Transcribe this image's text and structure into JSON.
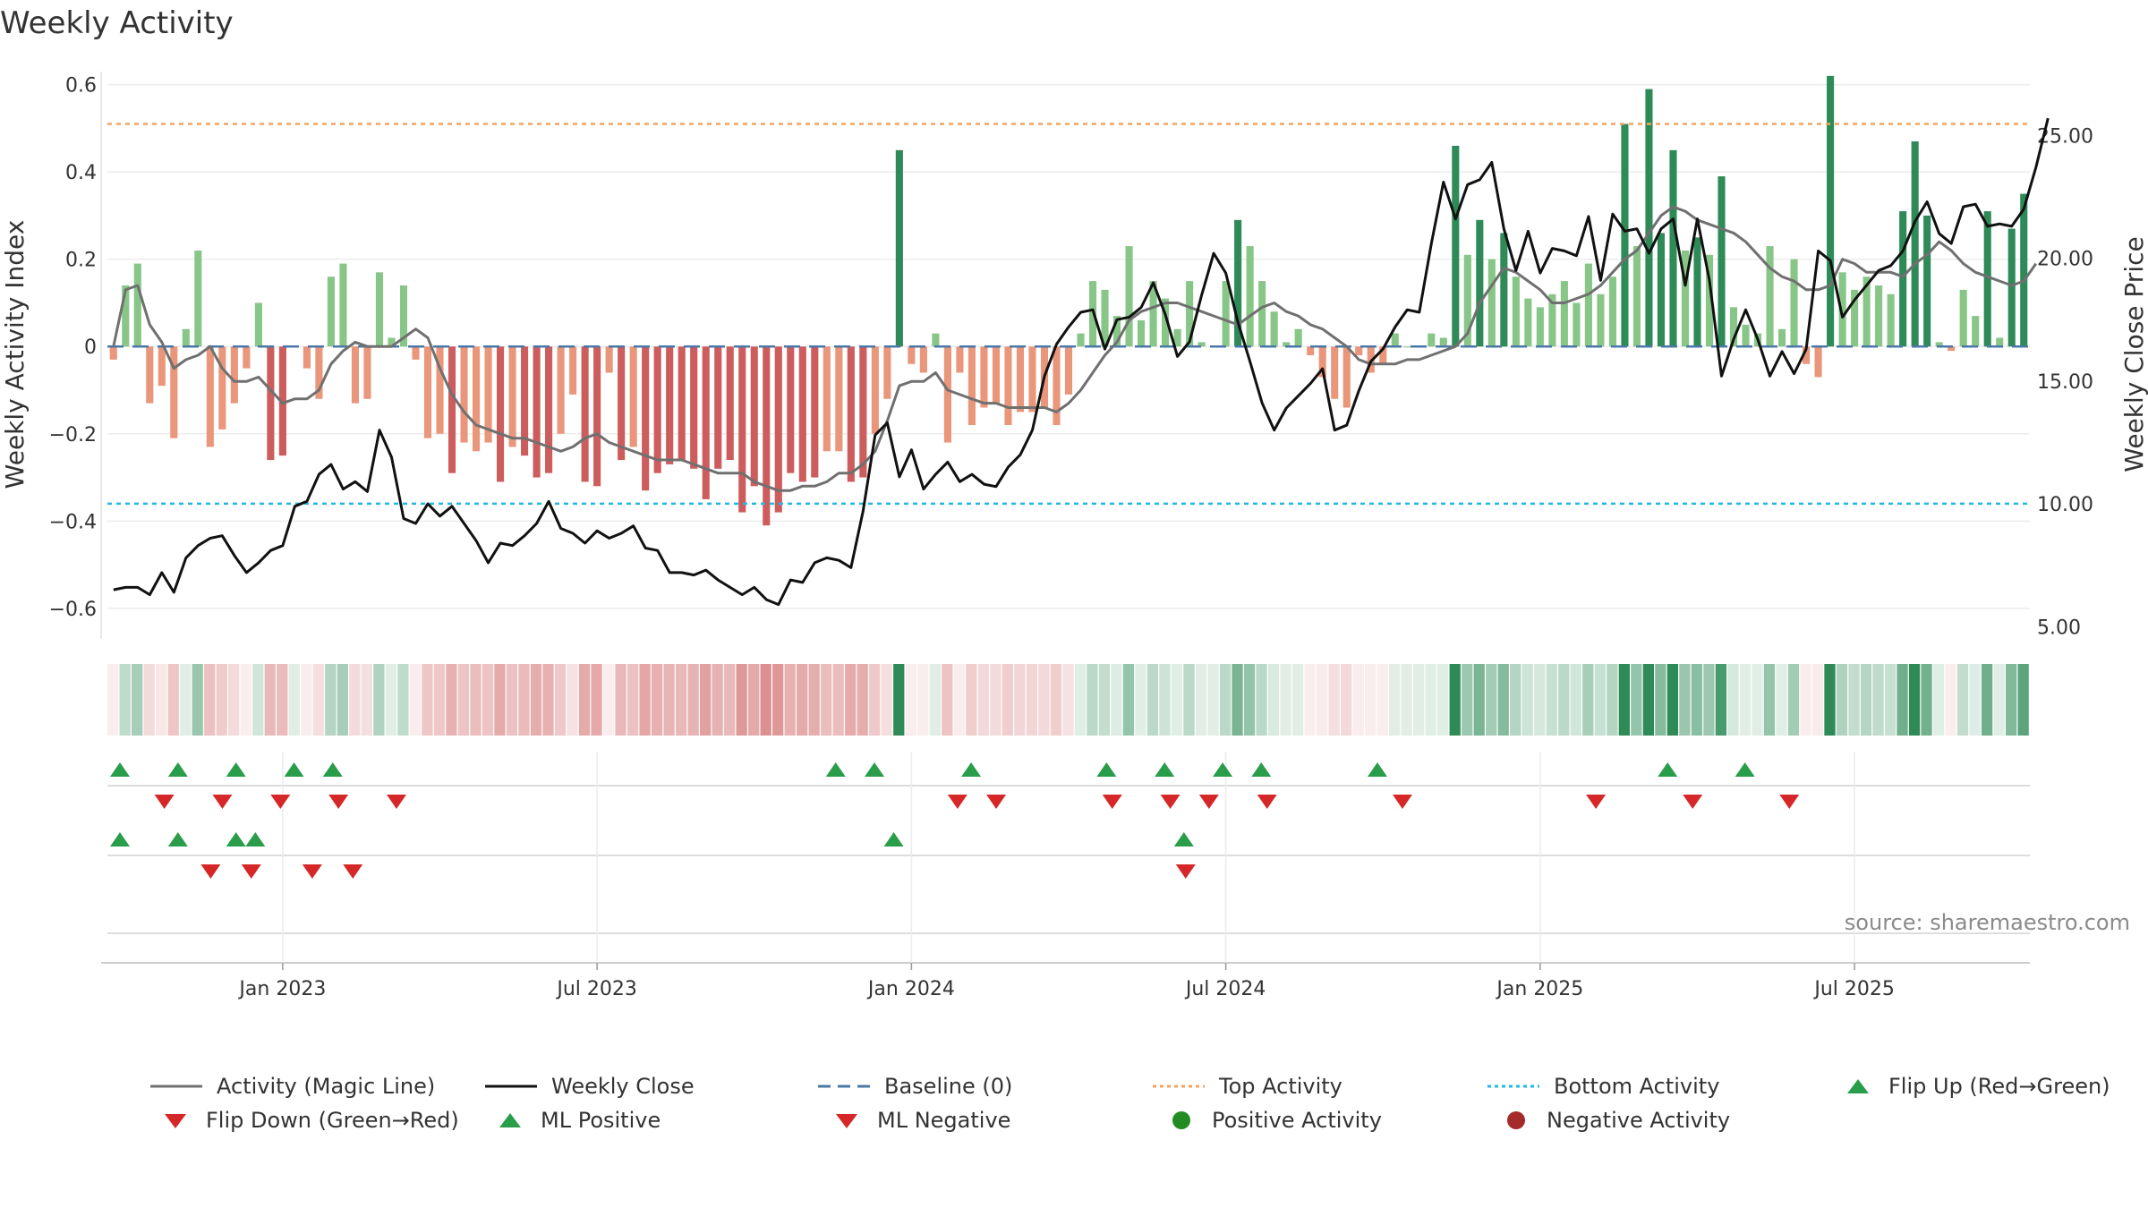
{
  "title": "Weekly Activity",
  "source": "source: sharemaestro.com",
  "chart_data": {
    "type": "bar",
    "title": "Weekly Activity",
    "ylabel": "Weekly Activity Index",
    "y2label": "Weekly Close Price",
    "ylim": [
      -0.67,
      0.63
    ],
    "y2lim": [
      4.5,
      27.6
    ],
    "yticks": [
      0.6,
      0.4,
      0.2,
      0,
      -0.2,
      -0.4,
      -0.6
    ],
    "ytick_labels": [
      "0.6",
      "0.4",
      "0.2",
      "0",
      "−0.2",
      "−0.4",
      "−0.6"
    ],
    "y2ticks": [
      25,
      20,
      15,
      10,
      5
    ],
    "y2tick_labels": [
      "25.00",
      "20.00",
      "15.00",
      "10.00",
      "5.00"
    ],
    "top_activity": 0.51,
    "bottom_activity": -0.36,
    "baseline": 0,
    "x_months": [
      "Jan 2023",
      "Jul 2023",
      "Jan 2024",
      "Jul 2024",
      "Jan 2025",
      "Jul 2025"
    ],
    "x_month_weeks": [
      14.5,
      40.5,
      66.5,
      92.5,
      118.5,
      144.5
    ],
    "activity": [
      -0.03,
      0.14,
      0.19,
      -0.13,
      -0.09,
      -0.21,
      0.04,
      0.22,
      -0.23,
      -0.19,
      -0.13,
      -0.05,
      0.1,
      -0.26,
      -0.25,
      0.0,
      -0.05,
      -0.12,
      0.16,
      0.19,
      -0.13,
      -0.12,
      0.17,
      0.02,
      0.14,
      -0.03,
      -0.21,
      -0.2,
      -0.29,
      -0.22,
      -0.24,
      -0.22,
      -0.31,
      -0.23,
      -0.25,
      -0.3,
      -0.29,
      -0.2,
      -0.11,
      -0.31,
      -0.32,
      -0.06,
      -0.26,
      -0.23,
      -0.33,
      -0.29,
      -0.27,
      -0.26,
      -0.28,
      -0.35,
      -0.28,
      -0.26,
      -0.38,
      -0.32,
      -0.41,
      -0.38,
      -0.29,
      -0.31,
      -0.3,
      -0.24,
      -0.24,
      -0.31,
      -0.3,
      -0.2,
      -0.12,
      0.45,
      -0.04,
      -0.06,
      0.03,
      -0.22,
      -0.06,
      -0.18,
      -0.14,
      -0.13,
      -0.18,
      -0.15,
      -0.15,
      -0.14,
      -0.18,
      -0.11,
      0.03,
      0.15,
      0.13,
      0.07,
      0.23,
      0.06,
      0.15,
      0.11,
      0.04,
      0.15,
      0.01,
      0.0,
      0.15,
      0.29,
      0.23,
      0.15,
      0.08,
      0.01,
      0.04,
      -0.02,
      -0.07,
      -0.12,
      -0.14,
      -0.02,
      -0.06,
      -0.04,
      0.03,
      0.0,
      0.0,
      0.03,
      0.02,
      0.46,
      0.21,
      0.29,
      0.2,
      0.26,
      0.16,
      0.11,
      0.09,
      0.12,
      0.15,
      0.1,
      0.19,
      0.12,
      0.16,
      0.51,
      0.23,
      0.59,
      0.26,
      0.45,
      0.22,
      0.25,
      0.21,
      0.39,
      0.09,
      0.05,
      0.03,
      0.23,
      0.04,
      0.2,
      -0.04,
      -0.07,
      0.62,
      0.17,
      0.13,
      0.16,
      0.14,
      0.12,
      0.31,
      0.47,
      0.3,
      0.01,
      -0.01,
      0.13,
      0.07,
      0.31,
      0.02,
      0.27,
      0.35
    ],
    "magic_line": [
      0.0,
      0.13,
      0.14,
      0.05,
      0.01,
      -0.05,
      -0.03,
      -0.02,
      0.0,
      -0.05,
      -0.08,
      -0.08,
      -0.07,
      -0.1,
      -0.13,
      -0.12,
      -0.12,
      -0.1,
      -0.04,
      -0.01,
      0.01,
      0.0,
      0.0,
      0.0,
      0.02,
      0.04,
      0.02,
      -0.05,
      -0.11,
      -0.15,
      -0.18,
      -0.19,
      -0.2,
      -0.21,
      -0.21,
      -0.22,
      -0.23,
      -0.24,
      -0.23,
      -0.21,
      -0.2,
      -0.22,
      -0.23,
      -0.24,
      -0.25,
      -0.26,
      -0.26,
      -0.26,
      -0.27,
      -0.28,
      -0.29,
      -0.29,
      -0.29,
      -0.31,
      -0.32,
      -0.33,
      -0.33,
      -0.32,
      -0.32,
      -0.31,
      -0.29,
      -0.29,
      -0.27,
      -0.24,
      -0.17,
      -0.09,
      -0.08,
      -0.08,
      -0.06,
      -0.1,
      -0.11,
      -0.12,
      -0.13,
      -0.13,
      -0.14,
      -0.14,
      -0.14,
      -0.14,
      -0.15,
      -0.13,
      -0.1,
      -0.06,
      -0.02,
      0.01,
      0.06,
      0.08,
      0.09,
      0.1,
      0.1,
      0.09,
      0.08,
      0.07,
      0.06,
      0.05,
      0.07,
      0.09,
      0.1,
      0.08,
      0.07,
      0.05,
      0.04,
      0.02,
      0.0,
      -0.03,
      -0.04,
      -0.04,
      -0.04,
      -0.03,
      -0.03,
      -0.02,
      -0.01,
      0.0,
      0.03,
      0.1,
      0.14,
      0.18,
      0.17,
      0.15,
      0.13,
      0.1,
      0.1,
      0.11,
      0.12,
      0.14,
      0.17,
      0.2,
      0.22,
      0.26,
      0.3,
      0.32,
      0.31,
      0.29,
      0.28,
      0.27,
      0.26,
      0.24,
      0.21,
      0.18,
      0.16,
      0.15,
      0.13,
      0.13,
      0.14,
      0.2,
      0.19,
      0.17,
      0.17,
      0.17,
      0.16,
      0.19,
      0.21,
      0.24,
      0.22,
      0.19,
      0.17,
      0.16,
      0.15,
      0.14,
      0.15,
      0.19
    ],
    "weekly_close": [
      6.5,
      6.6,
      6.6,
      6.3,
      7.2,
      6.4,
      7.8,
      8.3,
      8.6,
      8.7,
      7.9,
      7.2,
      7.6,
      8.1,
      8.3,
      9.9,
      10.1,
      11.2,
      11.6,
      10.6,
      10.9,
      10.5,
      13.0,
      11.9,
      9.4,
      9.2,
      10.0,
      9.5,
      9.9,
      9.2,
      8.5,
      7.6,
      8.4,
      8.3,
      8.7,
      9.2,
      10.1,
      9.0,
      8.8,
      8.4,
      8.9,
      8.6,
      8.8,
      9.1,
      8.2,
      8.1,
      7.2,
      7.2,
      7.1,
      7.3,
      6.9,
      6.6,
      6.3,
      6.6,
      6.1,
      5.9,
      6.9,
      6.8,
      7.6,
      7.8,
      7.7,
      7.4,
      9.7,
      12.8,
      13.3,
      11.1,
      12.2,
      10.6,
      11.2,
      11.7,
      10.9,
      11.2,
      10.8,
      10.7,
      11.5,
      12.0,
      13.0,
      15.2,
      16.5,
      17.2,
      17.8,
      17.9,
      16.3,
      17.5,
      17.6,
      18.0,
      19.0,
      17.7,
      16.0,
      16.6,
      18.5,
      20.2,
      19.4,
      17.4,
      15.8,
      14.1,
      13.0,
      13.9,
      14.4,
      14.9,
      15.5,
      13.0,
      13.2,
      14.6,
      15.8,
      16.3,
      17.2,
      17.9,
      17.8,
      20.6,
      23.1,
      21.6,
      23.0,
      23.2,
      23.9,
      21.2,
      19.5,
      21.1,
      19.4,
      20.4,
      20.3,
      20.1,
      21.7,
      19.1,
      21.8,
      21.1,
      21.2,
      20.2,
      21.2,
      21.6,
      18.9,
      21.6,
      19.1,
      15.2,
      16.7,
      17.9,
      16.7,
      15.2,
      16.2,
      15.3,
      16.3,
      20.3,
      19.9,
      17.6,
      18.3,
      18.9,
      19.5,
      19.7,
      20.3,
      21.5,
      22.3,
      21.0,
      20.6,
      22.1,
      22.2,
      21.3,
      21.4,
      21.3,
      22.0,
      23.7,
      25.7
    ]
  },
  "flip_up": [
    0,
    3,
    6,
    9,
    11,
    37,
    39,
    44,
    51,
    54,
    57,
    59,
    65,
    80,
    84
  ],
  "flip_down": [
    1,
    4,
    7,
    10,
    13,
    42,
    44,
    50,
    53,
    55,
    58,
    65,
    75,
    80,
    85
  ],
  "ml_positive": [
    0,
    3,
    6,
    7,
    40,
    55
  ],
  "ml_negative": [
    2,
    4,
    7,
    9,
    50
  ],
  "legend": {
    "activity": "Activity (Magic Line)",
    "close": "Weekly Close",
    "baseline": "Baseline (0)",
    "top": "Top Activity",
    "bottom": "Bottom Activity",
    "flip_up": "Flip Up (Red→Green)",
    "flip_down": "Flip Down (Green→Red)",
    "ml_positive": "ML Positive",
    "ml_negative": "ML Negative",
    "positive": "Positive Activity",
    "negative": "Negative Activity"
  },
  "colors": {
    "pos_dark": "#2e8b57",
    "pos_light": "#88c688",
    "neg_dark": "#cd5c5c",
    "neg_light": "#e9967a",
    "magic_line": "#707070",
    "close": "#111111",
    "baseline": "#4c78a8",
    "top": "#f4a460",
    "bottom": "#22b8e0",
    "marker_up": "#2a9d4a",
    "marker_down": "#d62728",
    "positive_dot": "#228b22",
    "negative_dot": "#a52a2a"
  }
}
